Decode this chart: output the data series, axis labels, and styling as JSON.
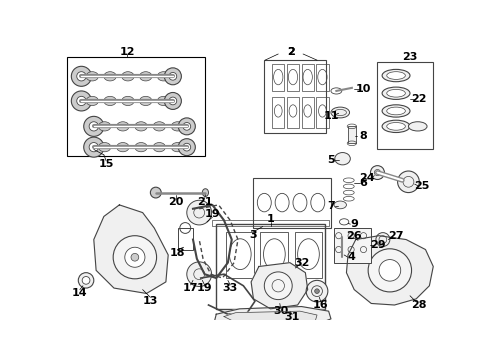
{
  "bg_color": "#ffffff",
  "gray": "#444444",
  "lgray": "#888888",
  "llgray": "#cccccc"
}
